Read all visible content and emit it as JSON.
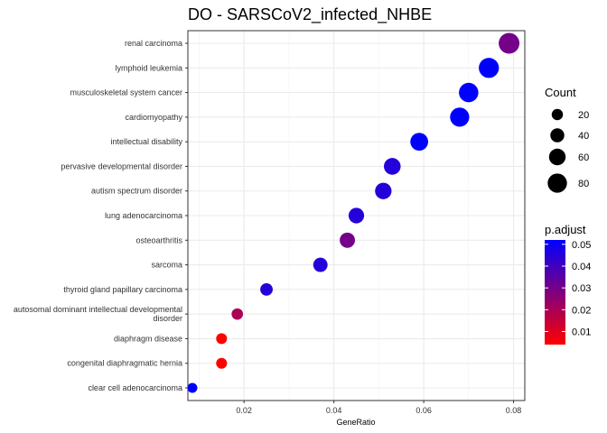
{
  "chart_data": {
    "type": "scatter",
    "title": "DO - SARSCoV2_infected_NHBE",
    "xlabel": "GeneRatio",
    "ylabel": "",
    "xlim": [
      0.0075,
      0.0825
    ],
    "x_ticks": [
      "0.02",
      "0.04",
      "0.06",
      "0.08"
    ],
    "x_tick_values": [
      0.02,
      0.04,
      0.06,
      0.08
    ],
    "grid": true,
    "categories": [
      "renal carcinoma",
      "lymphoid leukemia",
      "musculoskeletal system cancer",
      "cardiomyopathy",
      "intellectual disability",
      "pervasive developmental disorder",
      "autism spectrum disorder",
      "lung adenocarcinoma",
      "osteoarthritis",
      "sarcoma",
      "thyroid gland papillary carcinoma",
      "autosomal dominant intellectual developmental disorder",
      "diaphragm disease",
      "congenital diaphragmatic hernia",
      "clear cell adenocarcinoma"
    ],
    "category_lines": [
      [
        "renal carcinoma"
      ],
      [
        "lymphoid leukemia"
      ],
      [
        "musculoskeletal system cancer"
      ],
      [
        "cardiomyopathy"
      ],
      [
        "intellectual disability"
      ],
      [
        "pervasive developmental disorder"
      ],
      [
        "autism spectrum disorder"
      ],
      [
        "lung adenocarcinoma"
      ],
      [
        "osteoarthritis"
      ],
      [
        "sarcoma"
      ],
      [
        "thyroid gland papillary carcinoma"
      ],
      [
        "autosomal dominant intellectual developmental",
        "disorder"
      ],
      [
        "diaphragm disease"
      ],
      [
        "congenital diaphragmatic hernia"
      ],
      [
        "clear cell adenocarcinoma"
      ]
    ],
    "points": [
      {
        "term": "renal carcinoma",
        "gene_ratio": 0.079,
        "count": 91,
        "p_adjust": 0.03
      },
      {
        "term": "lymphoid leukemia",
        "gene_ratio": 0.0745,
        "count": 86,
        "p_adjust": 0.052
      },
      {
        "term": "musculoskeletal system cancer",
        "gene_ratio": 0.07,
        "count": 81,
        "p_adjust": 0.052
      },
      {
        "term": "cardiomyopathy",
        "gene_ratio": 0.068,
        "count": 79,
        "p_adjust": 0.052
      },
      {
        "term": "intellectual disability",
        "gene_ratio": 0.059,
        "count": 69,
        "p_adjust": 0.052
      },
      {
        "term": "pervasive developmental disorder",
        "gene_ratio": 0.053,
        "count": 61,
        "p_adjust": 0.045
      },
      {
        "term": "autism spectrum disorder",
        "gene_ratio": 0.051,
        "count": 59,
        "p_adjust": 0.045
      },
      {
        "term": "lung adenocarcinoma",
        "gene_ratio": 0.045,
        "count": 52,
        "p_adjust": 0.045
      },
      {
        "term": "osteoarthritis",
        "gene_ratio": 0.043,
        "count": 50,
        "p_adjust": 0.03
      },
      {
        "term": "sarcoma",
        "gene_ratio": 0.037,
        "count": 43,
        "p_adjust": 0.045
      },
      {
        "term": "thyroid gland papillary carcinoma",
        "gene_ratio": 0.025,
        "count": 29,
        "p_adjust": 0.045
      },
      {
        "term": "autosomal dominant intellectual developmental disorder",
        "gene_ratio": 0.0185,
        "count": 21,
        "p_adjust": 0.02
      },
      {
        "term": "diaphragm disease",
        "gene_ratio": 0.015,
        "count": 17,
        "p_adjust": 0.004
      },
      {
        "term": "congenital diaphragmatic hernia",
        "gene_ratio": 0.015,
        "count": 17,
        "p_adjust": 0.004
      },
      {
        "term": "clear cell adenocarcinoma",
        "gene_ratio": 0.0085,
        "count": 10,
        "p_adjust": 0.052
      }
    ],
    "size_legend": {
      "title": "Count",
      "values": [
        20,
        40,
        60,
        80
      ]
    },
    "color_legend": {
      "title": "p.adjust",
      "ticks": [
        "0.05",
        "0.04",
        "0.03",
        "0.02",
        "0.01"
      ],
      "tick_values": [
        0.05,
        0.04,
        0.03,
        0.02,
        0.01
      ],
      "range": [
        0.004,
        0.052
      ],
      "low_color": "#FF0000",
      "high_color": "#0000FF"
    },
    "legend_placement": "right"
  }
}
